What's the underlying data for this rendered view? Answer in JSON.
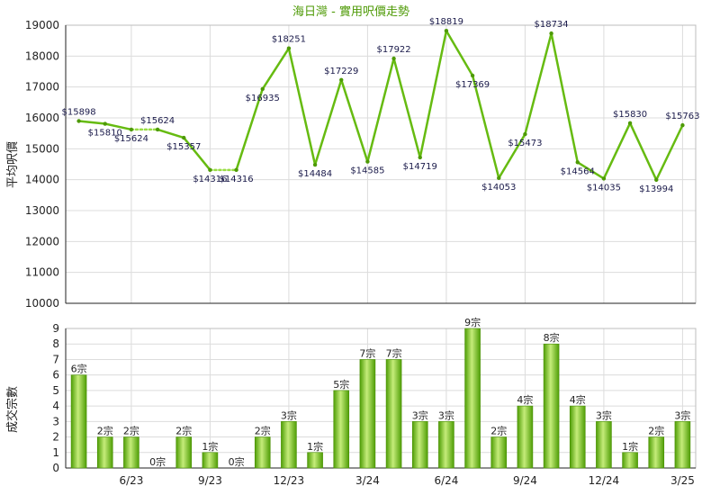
{
  "chart_data": [
    {
      "type": "line",
      "title": "海日灣 - 實用呎價走勢",
      "ylabel": "平均呎價",
      "ylim": [
        10000,
        19000
      ],
      "yticks": [
        "10000",
        "11000",
        "12000",
        "13000",
        "14000",
        "15000",
        "16000",
        "17000",
        "18000",
        "19000"
      ],
      "points": [
        {
          "x": 0,
          "y": 15898,
          "label": "$15898"
        },
        {
          "x": 1,
          "y": 15810,
          "label": "$15810"
        },
        {
          "x": 2,
          "y": 15624,
          "label": "$15624"
        },
        {
          "x": 3,
          "y": 15624,
          "label": "$15624"
        },
        {
          "x": 4,
          "y": 15357,
          "label": "$15357"
        },
        {
          "x": 5,
          "y": 14316,
          "label": "$14316"
        },
        {
          "x": 6,
          "y": 14316,
          "label": "$14316"
        },
        {
          "x": 7,
          "y": 16935,
          "label": "$16935"
        },
        {
          "x": 8,
          "y": 18251,
          "label": "$18251"
        },
        {
          "x": 9,
          "y": 14484,
          "label": "$14484"
        },
        {
          "x": 10,
          "y": 17229,
          "label": "$17229"
        },
        {
          "x": 11,
          "y": 14585,
          "label": "$14585"
        },
        {
          "x": 12,
          "y": 17922,
          "label": "$17922"
        },
        {
          "x": 13,
          "y": 14719,
          "label": "$14719"
        },
        {
          "x": 14,
          "y": 18819,
          "label": "$18819"
        },
        {
          "x": 15,
          "y": 17369,
          "label": "$17369"
        },
        {
          "x": 16,
          "y": 14053,
          "label": "$14053"
        },
        {
          "x": 17,
          "y": 15473,
          "label": "$15473"
        },
        {
          "x": 18,
          "y": 18734,
          "label": "$18734"
        },
        {
          "x": 19,
          "y": 14564,
          "label": "$14564"
        },
        {
          "x": 20,
          "y": 14035,
          "label": "$14035"
        },
        {
          "x": 21,
          "y": 15830,
          "label": "$15830"
        },
        {
          "x": 22,
          "y": 13994,
          "label": "$13994"
        },
        {
          "x": 23,
          "y": 15763,
          "label": "$15763"
        }
      ],
      "dotted_segments": [
        [
          2,
          3
        ],
        [
          5,
          6
        ]
      ],
      "colors": {
        "line": "#66bb11",
        "dotted": "#99dd44",
        "title": "#4e9a06"
      }
    },
    {
      "type": "bar",
      "ylabel": "成交宗數",
      "ylim": [
        0,
        9
      ],
      "yticks": [
        "0",
        "1",
        "2",
        "3",
        "4",
        "5",
        "6",
        "7",
        "8",
        "9"
      ],
      "categories": [
        "",
        "",
        "6/23",
        "",
        "",
        "9/23",
        "",
        "",
        "12/23",
        "",
        "",
        "3/24",
        "",
        "",
        "6/24",
        "",
        "",
        "9/24",
        "",
        "",
        "12/24",
        "",
        "",
        "3/25"
      ],
      "values": [
        6,
        2,
        2,
        0,
        2,
        1,
        0,
        2,
        3,
        1,
        5,
        7,
        7,
        3,
        3,
        9,
        2,
        4,
        8,
        4,
        3,
        1,
        2,
        3
      ],
      "labels": [
        "6宗",
        "2宗",
        "2宗",
        "0宗",
        "2宗",
        "1宗",
        "0宗",
        "2宗",
        "3宗",
        "1宗",
        "5宗",
        "7宗",
        "7宗",
        "3宗",
        "3宗",
        "9宗",
        "2宗",
        "4宗",
        "8宗",
        "4宗",
        "3宗",
        "1宗",
        "2宗",
        "3宗"
      ],
      "colors": {
        "bar_light": "#c5ec7a",
        "bar_dark": "#4f9e06"
      }
    }
  ]
}
